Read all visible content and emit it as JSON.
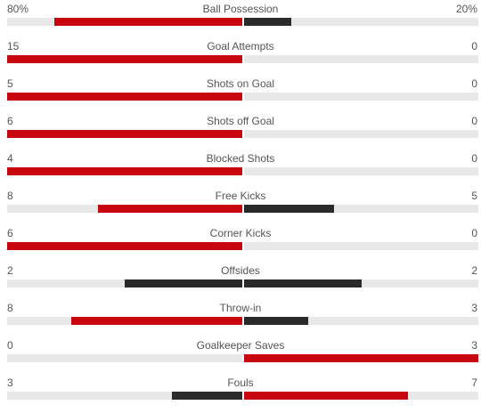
{
  "colors": {
    "leader": "#c8060f",
    "trailer": "#2a2a2a",
    "track": "#e8e8e8"
  },
  "stats": [
    {
      "name": "Ball Possession",
      "home": "80%",
      "away": "20%",
      "home_share": 0.8,
      "away_share": 0.2,
      "leader": "home"
    },
    {
      "name": "Goal Attempts",
      "home": "15",
      "away": "0",
      "home_share": 1.0,
      "away_share": 0.0,
      "leader": "home"
    },
    {
      "name": "Shots on Goal",
      "home": "5",
      "away": "0",
      "home_share": 1.0,
      "away_share": 0.0,
      "leader": "home"
    },
    {
      "name": "Shots off Goal",
      "home": "6",
      "away": "0",
      "home_share": 1.0,
      "away_share": 0.0,
      "leader": "home"
    },
    {
      "name": "Blocked Shots",
      "home": "4",
      "away": "0",
      "home_share": 1.0,
      "away_share": 0.0,
      "leader": "home"
    },
    {
      "name": "Free Kicks",
      "home": "8",
      "away": "5",
      "home_share": 0.6154,
      "away_share": 0.3846,
      "leader": "home"
    },
    {
      "name": "Corner Kicks",
      "home": "6",
      "away": "0",
      "home_share": 1.0,
      "away_share": 0.0,
      "leader": "home"
    },
    {
      "name": "Offsides",
      "home": "2",
      "away": "2",
      "home_share": 0.5,
      "away_share": 0.5,
      "leader": "none"
    },
    {
      "name": "Throw-in",
      "home": "8",
      "away": "3",
      "home_share": 0.7273,
      "away_share": 0.2727,
      "leader": "home"
    },
    {
      "name": "Goalkeeper Saves",
      "home": "0",
      "away": "3",
      "home_share": 0.0,
      "away_share": 1.0,
      "leader": "away"
    },
    {
      "name": "Fouls",
      "home": "3",
      "away": "7",
      "home_share": 0.3,
      "away_share": 0.7,
      "leader": "away"
    }
  ]
}
